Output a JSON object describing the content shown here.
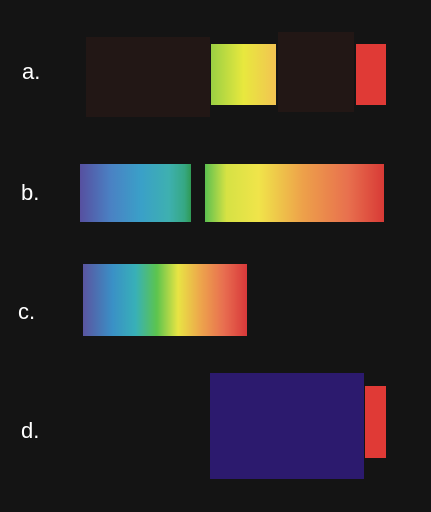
{
  "labels": {
    "a": "a.",
    "b": "b.",
    "c": "c.",
    "d": "d."
  },
  "colors": {
    "background": "#141414",
    "dark_block": "#221715",
    "red_block": "#e03a36",
    "navy_block": "#2c1a6e"
  }
}
